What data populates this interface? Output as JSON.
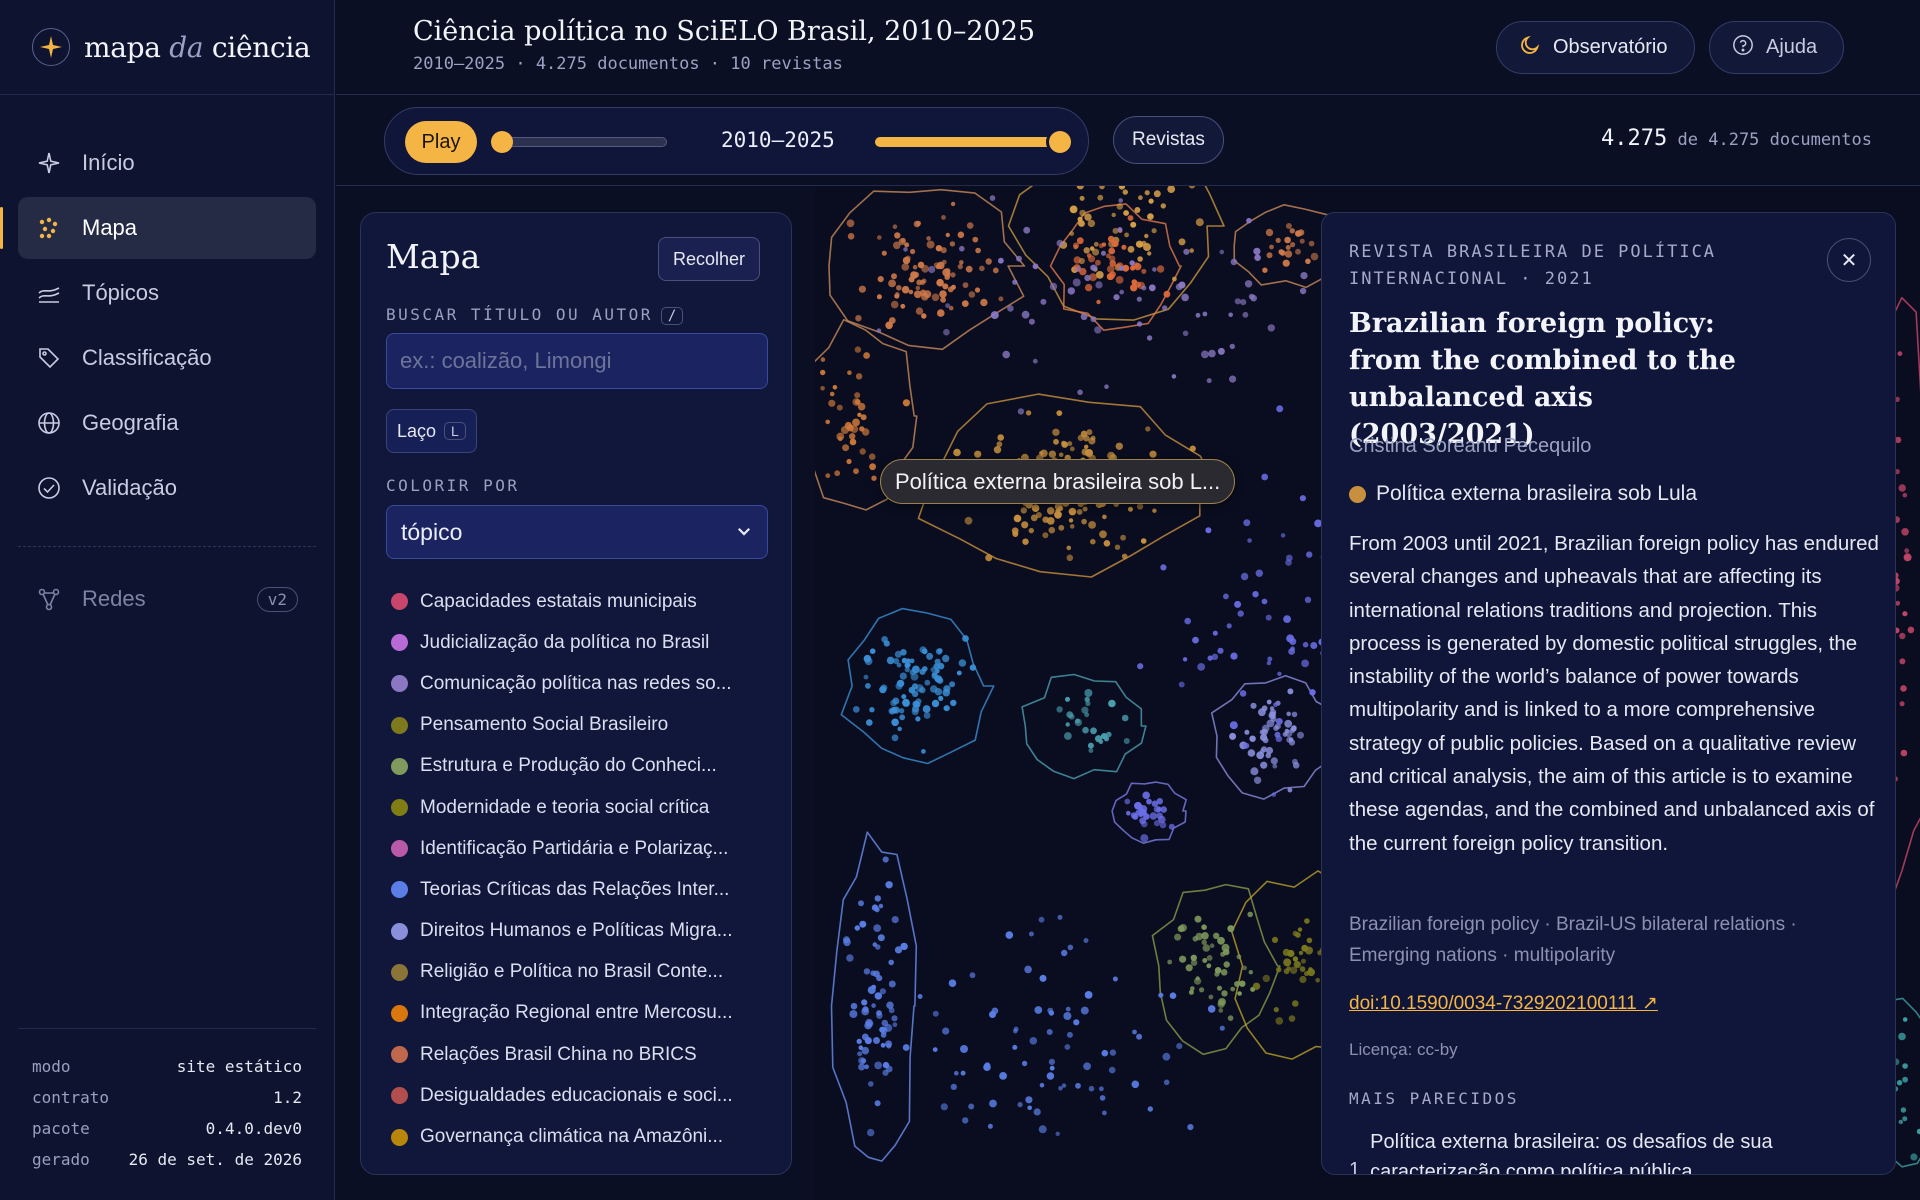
{
  "brand": {
    "part1": "mapa",
    "part2": "da",
    "part3": "ciência"
  },
  "nav": {
    "items": [
      {
        "label": "Início",
        "icon": "sparkle-icon"
      },
      {
        "label": "Mapa",
        "icon": "scatter-dots-icon"
      },
      {
        "label": "Tópicos",
        "icon": "layers-icon"
      },
      {
        "label": "Classificação",
        "icon": "tag-icon"
      },
      {
        "label": "Geografia",
        "icon": "globe-icon"
      },
      {
        "label": "Validação",
        "icon": "check-circle-icon"
      }
    ],
    "active": "Mapa",
    "redes": {
      "label": "Redes",
      "badge": "v2",
      "icon": "network-icon"
    }
  },
  "meta": [
    {
      "key": "modo",
      "value": "site estático"
    },
    {
      "key": "contrato",
      "value": "1.2"
    },
    {
      "key": "pacote",
      "value": "0.4.0.dev0"
    },
    {
      "key": "gerado",
      "value": "26 de set. de 2026"
    }
  ],
  "header": {
    "title": "Ciência política no SciELO Brasil, 2010–2025",
    "subtitle": "2010–2025 · 4.275 documentos · 10 revistas",
    "observatorio": "Observatório",
    "ajuda": "Ajuda"
  },
  "toolbar": {
    "play": "Play",
    "range": "2010–2025",
    "revistas": "Revistas",
    "count_shown": "4.275",
    "count_total": "de 4.275 documentos"
  },
  "panel": {
    "title": "Mapa",
    "collapse": "Recolher",
    "search_label": "BUSCAR TÍTULO OU AUTOR",
    "search_key": "/",
    "search_placeholder": "ex.: coalizão, Limongi",
    "laco": "Laço",
    "laco_key": "L",
    "colorby_label": "COLORIR POR",
    "colorby_value": "tópico",
    "legend": [
      {
        "label": "Capacidades estatais municipais",
        "color": "#c8466b"
      },
      {
        "label": "Judicialização da política no Brasil",
        "color": "#b86ad6"
      },
      {
        "label": "Comunicação política nas redes so...",
        "color": "#8a78c2"
      },
      {
        "label": "Pensamento Social Brasileiro",
        "color": "#7d7a1e"
      },
      {
        "label": "Estrutura e Produção do Conheci...",
        "color": "#7f9a5c"
      },
      {
        "label": "Modernidade e teoria social crítica",
        "color": "#7f7d14"
      },
      {
        "label": "Identificação Partidária e Polarizaç...",
        "color": "#b85aa8"
      },
      {
        "label": "Teorias Críticas das Relações Inter...",
        "color": "#5a7ee6"
      },
      {
        "label": "Direitos Humanos e Políticas Migra...",
        "color": "#8a8fdc"
      },
      {
        "label": "Religião e Política no Brasil Conte...",
        "color": "#8a7438"
      },
      {
        "label": "Integração Regional entre Mercosu...",
        "color": "#d9760e"
      },
      {
        "label": "Relações Brasil China no BRICS",
        "color": "#c0684e"
      },
      {
        "label": "Desigualdades educacionais e soci...",
        "color": "#b24e4e"
      },
      {
        "label": "Governança climática na Amazôni...",
        "color": "#b8860b"
      }
    ]
  },
  "map": {
    "tooltip": "Política externa brasileira sob L..."
  },
  "detail": {
    "journal": "REVISTA BRASILEIRA DE POLÍTICA INTERNACIONAL · 2021",
    "title": "Brazilian foreign policy: from the combined to the unbalanced axis (2003/2021)",
    "author": "Cristina Soreanu Pecequilo",
    "topic": "Política externa brasileira sob Lula",
    "topic_color": "#c8903e",
    "abstract": "From 2003 until 2021, Brazilian foreign policy has endured several changes and upheavals that are affecting its international relations traditions and projection. This process is generated by domestic political struggles, the instability of the world’s balance of power towards multipolarity and is linked to a more comprehensive strategy of public policies. Based on a qualitative review and critical analysis, the aim of this article is to examine these agendas, and the combined and unbalanced axis of the current foreign policy transition.",
    "keywords": "Brazilian foreign policy · Brazil-US bilateral relations · Emerging nations · multipolarity",
    "doi": "doi:10.1590/0034-7329202100111 ↗",
    "license": "Licença: cc-by",
    "similar_heading": "MAIS PARECIDOS",
    "similar": [
      {
        "num": "1",
        "title": "Política externa brasileira: os desafios de sua caracterização como política pública"
      }
    ]
  }
}
